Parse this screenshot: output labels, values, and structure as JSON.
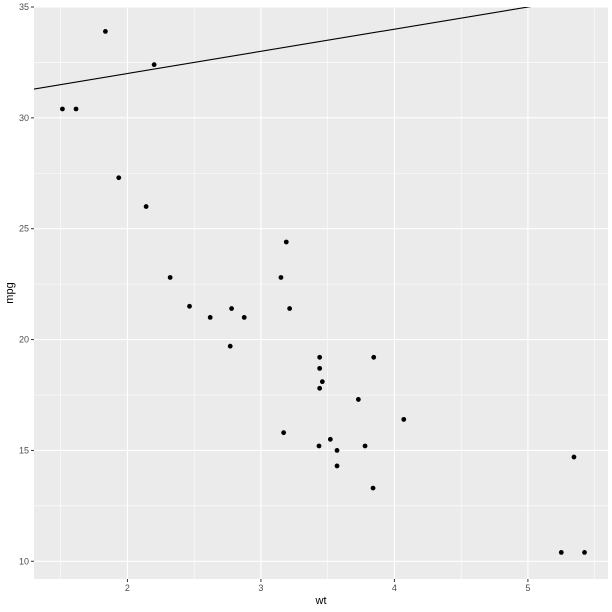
{
  "chart_data": {
    "type": "scatter",
    "title": "",
    "xlabel": "wt",
    "ylabel": "mpg",
    "xlim": [
      1.3,
      5.6
    ],
    "ylim": [
      9.2,
      35.0
    ],
    "x_ticks": [
      2,
      3,
      4,
      5
    ],
    "y_ticks": [
      10,
      15,
      20,
      25,
      30,
      35
    ],
    "grid": true,
    "background": "#ebebeb",
    "grid_color": "#ffffff",
    "point_color": "#000000",
    "line_color": "#000000",
    "points": [
      {
        "x": 1.513,
        "y": 30.4
      },
      {
        "x": 1.615,
        "y": 30.4
      },
      {
        "x": 1.835,
        "y": 33.9
      },
      {
        "x": 1.935,
        "y": 27.3
      },
      {
        "x": 2.14,
        "y": 26.0
      },
      {
        "x": 2.2,
        "y": 32.4
      },
      {
        "x": 2.32,
        "y": 22.8
      },
      {
        "x": 2.465,
        "y": 21.5
      },
      {
        "x": 2.62,
        "y": 21.0
      },
      {
        "x": 2.77,
        "y": 19.7
      },
      {
        "x": 2.78,
        "y": 21.4
      },
      {
        "x": 2.875,
        "y": 21.0
      },
      {
        "x": 3.15,
        "y": 22.8
      },
      {
        "x": 3.17,
        "y": 15.8
      },
      {
        "x": 3.19,
        "y": 24.4
      },
      {
        "x": 3.215,
        "y": 21.4
      },
      {
        "x": 3.435,
        "y": 15.2
      },
      {
        "x": 3.44,
        "y": 18.7
      },
      {
        "x": 3.44,
        "y": 19.2
      },
      {
        "x": 3.44,
        "y": 17.8
      },
      {
        "x": 3.46,
        "y": 18.1
      },
      {
        "x": 3.52,
        "y": 15.5
      },
      {
        "x": 3.57,
        "y": 15.0
      },
      {
        "x": 3.57,
        "y": 14.3
      },
      {
        "x": 3.73,
        "y": 17.3
      },
      {
        "x": 3.78,
        "y": 15.2
      },
      {
        "x": 3.84,
        "y": 13.3
      },
      {
        "x": 3.845,
        "y": 19.2
      },
      {
        "x": 4.07,
        "y": 16.4
      },
      {
        "x": 5.25,
        "y": 10.4
      },
      {
        "x": 5.345,
        "y": 14.7
      },
      {
        "x": 5.424,
        "y": 10.4
      }
    ],
    "line": {
      "intercept": 30.0,
      "slope": 1.0
    }
  }
}
